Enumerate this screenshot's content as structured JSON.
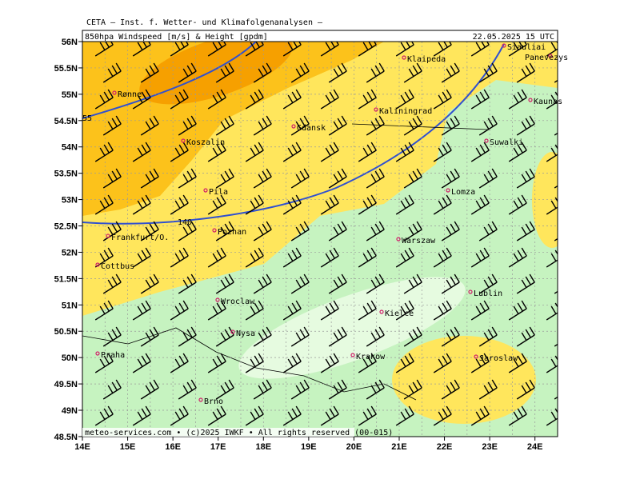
{
  "header": "CETA — Inst. f. Wetter- und Klimafolgenanalysen —",
  "title": "850hpa Windspeed [m/s] & Height [gpdm]",
  "valid_time": "22.05.2025 15 UTC",
  "footer": "meteo-services.com • (c)2025 IWKF • All rights reserved (00-015)",
  "lat_labels": [
    "56N",
    "55.5N",
    "55N",
    "54.5N",
    "54N",
    "53.5N",
    "53N",
    "52.5N",
    "52N",
    "51.5N",
    "51N",
    "50.5N",
    "50N",
    "49.5N",
    "49N",
    "48.5N"
  ],
  "lon_labels": [
    "14E",
    "15E",
    "16E",
    "17E",
    "18E",
    "19E",
    "20E",
    "21E",
    "22E",
    "23E",
    "24E"
  ],
  "contour_labels": [
    "55",
    "140"
  ],
  "cities": [
    "Rønne",
    "Koszalin",
    "Gdansk",
    "Kaliningrad",
    "Klaipeda",
    "Siauliai",
    "Panevezys",
    "Kaunas",
    "Suwalki",
    "Lomza",
    "Pila",
    "Poznan",
    "Frankfurt/O.",
    "Warszaw",
    "Cottbus",
    "Lublin",
    "Wroclaw",
    "Kielce",
    "Nysa",
    "Praha",
    "Krakow",
    "Jaroslaw",
    "Brno"
  ]
}
